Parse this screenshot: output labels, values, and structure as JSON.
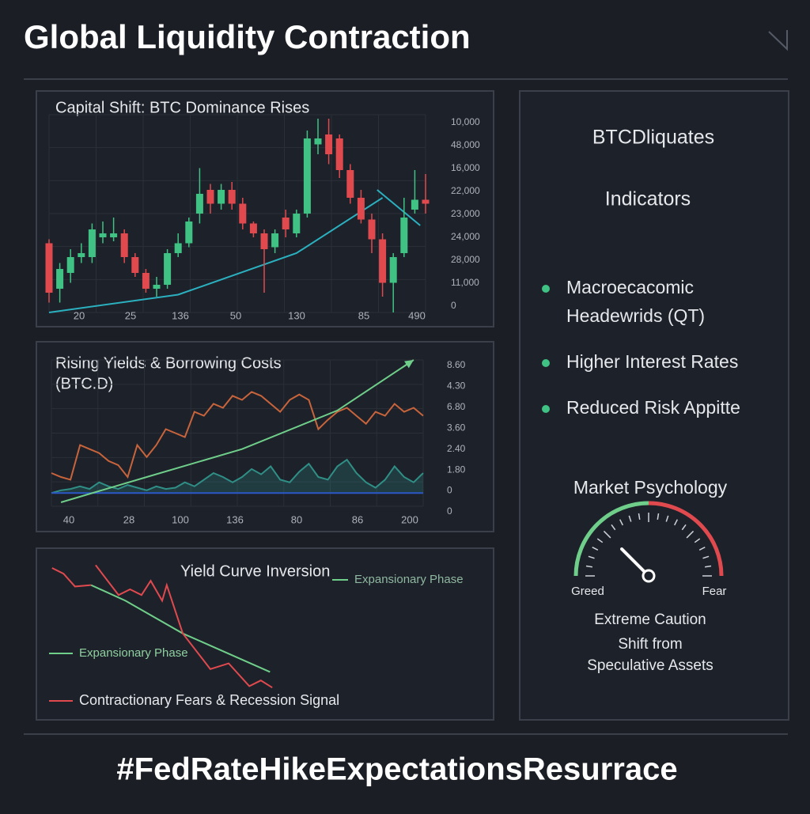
{
  "title": "Global Liquidity Contraction",
  "footer": "#FedRateHikeExpectationsResurrace",
  "chart_data": [
    {
      "type": "candlestick",
      "title": "Capital Shift: BTC Dominance Rises",
      "x_labels": [
        "20",
        "25",
        "136",
        "50",
        "130",
        "85",
        "490"
      ],
      "y_labels": [
        "10,000",
        "48,000",
        "16,000",
        "22,000",
        "23,000",
        "24,000",
        "28,000",
        "11,000",
        "0"
      ],
      "xlim": [
        0,
        35
      ],
      "ylim": [
        0,
        100
      ],
      "grid": true,
      "up_color": "#3fc283",
      "down_color": "#e04a4f",
      "open": [
        35,
        12,
        20,
        28,
        28,
        38,
        38,
        40,
        28,
        20,
        12,
        14,
        30,
        35,
        50,
        62,
        55,
        62,
        55,
        45,
        40,
        33,
        48,
        40,
        50,
        85,
        90,
        88,
        72,
        58,
        47,
        37,
        15,
        30,
        52,
        57
      ],
      "high": [
        37,
        25,
        32,
        35,
        45,
        46,
        48,
        42,
        30,
        22,
        18,
        32,
        40,
        48,
        73,
        65,
        65,
        66,
        58,
        46,
        42,
        42,
        52,
        52,
        92,
        98,
        98,
        90,
        75,
        62,
        50,
        40,
        30,
        58,
        72,
        70
      ],
      "low": [
        5,
        5,
        15,
        25,
        25,
        35,
        36,
        25,
        18,
        10,
        8,
        12,
        28,
        33,
        45,
        50,
        52,
        52,
        42,
        38,
        10,
        30,
        38,
        38,
        48,
        80,
        75,
        68,
        55,
        45,
        30,
        8,
        0,
        28,
        50,
        50
      ],
      "close": [
        10,
        22,
        28,
        30,
        42,
        40,
        40,
        28,
        20,
        12,
        14,
        30,
        35,
        46,
        60,
        55,
        62,
        55,
        45,
        40,
        32,
        40,
        42,
        50,
        88,
        88,
        80,
        72,
        58,
        47,
        37,
        15,
        28,
        48,
        57,
        55
      ],
      "lines": [
        {
          "color": "#2bb0c0",
          "x": [
            0,
            12,
            23,
            31
          ],
          "values": [
            0,
            9,
            30,
            58
          ]
        },
        {
          "color": "#2bb0c0",
          "x": [
            30.5,
            34.5
          ],
          "values": [
            62,
            44
          ]
        }
      ]
    },
    {
      "type": "line",
      "title": "Rising Yields & Borrowing Costs",
      "subtitle": "(BTC.D)",
      "x_labels": [
        "40",
        "28",
        "100",
        "136",
        "80",
        "86",
        "200"
      ],
      "y_labels": [
        "8.60",
        "4.30",
        "6.80",
        "3.60",
        "2.40",
        "1.80",
        "0",
        "0"
      ],
      "xlim": [
        0,
        39
      ],
      "ylim": [
        -10,
        100
      ],
      "grid": true,
      "series": [
        {
          "color": "#2f8f86",
          "area": true,
          "x": [
            0,
            1,
            2,
            3,
            4,
            5,
            6,
            7,
            8,
            9,
            10,
            11,
            12,
            13,
            14,
            15,
            16,
            17,
            18,
            19,
            20,
            21,
            22,
            23,
            24,
            25,
            26,
            27,
            28,
            29,
            30,
            31,
            32,
            33,
            34,
            35,
            36,
            37,
            38,
            39
          ],
          "values": [
            0,
            2,
            3,
            5,
            3,
            8,
            5,
            3,
            6,
            4,
            2,
            5,
            3,
            4,
            8,
            5,
            10,
            15,
            12,
            8,
            12,
            18,
            14,
            20,
            10,
            8,
            16,
            22,
            12,
            10,
            20,
            25,
            15,
            8,
            4,
            10,
            20,
            12,
            8,
            15
          ]
        },
        {
          "color": "#c8643c",
          "x": [
            0,
            1,
            2,
            3,
            4,
            5,
            6,
            7,
            8,
            9,
            10,
            11,
            12,
            13,
            14,
            15,
            16,
            17,
            18,
            19,
            20,
            21,
            22,
            23,
            24,
            25,
            26,
            27,
            28,
            29,
            30,
            31,
            32,
            33,
            34,
            35,
            36,
            37,
            38,
            39
          ],
          "values": [
            15,
            12,
            10,
            36,
            33,
            30,
            24,
            21,
            12,
            36,
            27,
            36,
            48,
            45,
            42,
            61,
            58,
            67,
            64,
            73,
            70,
            76,
            73,
            67,
            61,
            70,
            74,
            70,
            48,
            55,
            61,
            64,
            58,
            52,
            61,
            58,
            67,
            61,
            64,
            58
          ]
        },
        {
          "color": "#2b57c8",
          "x": [
            0,
            39
          ],
          "values": [
            0,
            0
          ]
        },
        {
          "color": "#6fcf8a",
          "arrow": true,
          "x": [
            1,
            10,
            20,
            30,
            38
          ],
          "values": [
            -7,
            12,
            33,
            62,
            100
          ]
        }
      ]
    },
    {
      "type": "line",
      "title": "Yield Curve Inversion",
      "annotation": "Expansionary Phase",
      "xlim": [
        0,
        100
      ],
      "ylim": [
        0,
        100
      ],
      "series": [
        {
          "name": "Expansionary Phase",
          "color": "#6fcf8a",
          "x": [
            19,
            34,
            59,
            97
          ],
          "values": [
            78,
            67,
            44,
            17
          ]
        },
        {
          "name": "Contractionary Fears & Recession Signal",
          "color": "#e04a4f",
          "x": [
            2,
            7,
            12,
            19,
            20,
            21,
            31,
            36,
            41,
            45,
            50,
            52,
            59,
            71,
            79,
            88,
            93,
            98
          ],
          "values": [
            90,
            86,
            77,
            78,
            null,
            92,
            71,
            75,
            71,
            81,
            67,
            78,
            44,
            19,
            23,
            7,
            11,
            6
          ]
        }
      ]
    }
  ],
  "sidebar": {
    "heading": "BTCDliquates",
    "subheading": "Indicators",
    "bullet_color": "#3fc283",
    "bullets": [
      [
        "Macroecacomic",
        "Headewrids (QT)"
      ],
      [
        "Higher Interest Rates"
      ],
      [
        "Reduced Risk Appitte"
      ]
    ]
  },
  "gauge": {
    "title": "Market Psychology",
    "min_label": "Greed",
    "max_label": "Fear",
    "range": [
      0,
      100
    ],
    "value": 25,
    "colors": [
      "#6fcf8a",
      "#e04a4f"
    ],
    "captions": [
      "Extreme Caution",
      "Shift from",
      "Speculative Assets"
    ]
  }
}
